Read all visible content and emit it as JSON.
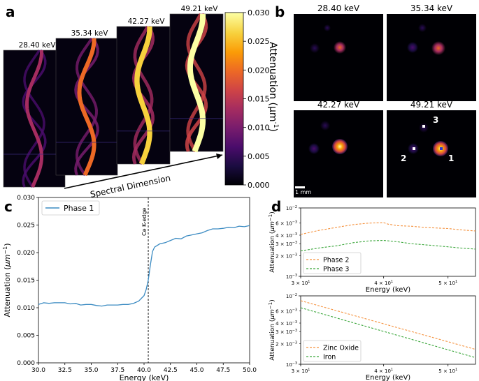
{
  "panels": {
    "a": "a",
    "b": "b",
    "c": "c",
    "d": "d"
  },
  "colors": {
    "phase1": "#3b8bc2",
    "orange": "#f5923e",
    "green": "#3aa63a",
    "cmap": [
      "#000004",
      "#1b0c41",
      "#4a0c6b",
      "#781c6d",
      "#a52c60",
      "#cf4446",
      "#ed6925",
      "#fb9b06",
      "#f7d13d",
      "#fcffa4"
    ]
  },
  "panel_a": {
    "energies": [
      "28.40 keV",
      "35.34 keV",
      "42.27 keV",
      "49.21 keV"
    ],
    "intensity": [
      0.25,
      0.5,
      0.85,
      1.0
    ],
    "spectral_label": "Spectral Dimension"
  },
  "colorbar": {
    "label_main": "Attenuation (μm",
    "label_sup": "-1",
    "label_close": ")",
    "ticks": [
      "0.000",
      "0.005",
      "0.010",
      "0.015",
      "0.020",
      "0.025",
      "0.030"
    ]
  },
  "panel_b": {
    "energies": [
      "28.40 keV",
      "35.34 keV",
      "42.27 keV",
      "49.21 keV"
    ],
    "markers": [
      "1",
      "2",
      "3"
    ],
    "scalebar": "1 mm"
  },
  "chart_data": [
    {
      "id": "c",
      "type": "line",
      "title": "",
      "xlabel": "Energy (keV)",
      "ylabel_main": "Attenuation (",
      "ylabel_unit": "μm",
      "ylabel_sup": "−1",
      "ylabel_close": ")",
      "xlim": [
        30.0,
        50.0
      ],
      "ylim": [
        0.0,
        0.03
      ],
      "xticks": [
        "30.0",
        "32.5",
        "35.0",
        "37.5",
        "40.0",
        "42.5",
        "45.0",
        "47.5",
        "50.0"
      ],
      "yticks": [
        "0.000",
        "0.005",
        "0.010",
        "0.015",
        "0.020",
        "0.025",
        "0.030"
      ],
      "legend": "Phase 1",
      "annotation": "Ce K-edge",
      "edge_x": 40.4,
      "series": [
        {
          "name": "Phase 1",
          "x": [
            30.0,
            30.5,
            31.0,
            31.5,
            32.0,
            32.5,
            33.0,
            33.5,
            34.0,
            34.5,
            35.0,
            35.5,
            36.0,
            36.5,
            37.0,
            37.5,
            38.0,
            38.5,
            39.0,
            39.5,
            40.0,
            40.2,
            40.4,
            40.6,
            40.8,
            41.0,
            41.5,
            42.0,
            42.5,
            43.0,
            43.5,
            44.0,
            44.5,
            45.0,
            45.5,
            46.0,
            46.5,
            47.0,
            47.5,
            48.0,
            48.5,
            49.0,
            49.5,
            50.0
          ],
          "y": [
            0.0106,
            0.0109,
            0.0108,
            0.0109,
            0.0109,
            0.0109,
            0.0107,
            0.0108,
            0.0105,
            0.0106,
            0.0106,
            0.0104,
            0.0103,
            0.0105,
            0.0105,
            0.0105,
            0.0106,
            0.0106,
            0.0108,
            0.0112,
            0.0122,
            0.0133,
            0.015,
            0.0178,
            0.0202,
            0.021,
            0.0216,
            0.0218,
            0.0222,
            0.0226,
            0.0225,
            0.023,
            0.0232,
            0.0234,
            0.0236,
            0.024,
            0.0243,
            0.0243,
            0.0244,
            0.0246,
            0.0245,
            0.0248,
            0.0247,
            0.0249
          ]
        }
      ]
    },
    {
      "id": "d1",
      "type": "line",
      "scale": "log-log",
      "xlabel": "Energy (keV)",
      "ylabel_main": "Attenuation (",
      "ylabel_unit": "μm",
      "ylabel_sup": "−1",
      "ylabel_close": ")",
      "xlim": [
        30,
        55
      ],
      "ylim": [
        0.001,
        0.01
      ],
      "yticks_major": [
        {
          "base": "10",
          "exp": "−2"
        },
        {
          "base": "10",
          "exp": "−3"
        }
      ],
      "yticks_minor": [
        {
          "base": "6 × 10",
          "exp": "−3"
        },
        {
          "base": "4 × 10",
          "exp": "−3"
        },
        {
          "base": "3 × 10",
          "exp": "−3"
        },
        {
          "base": "2 × 10",
          "exp": "−3"
        }
      ],
      "xticks": [
        {
          "base": "3 × 10",
          "exp": "1"
        },
        {
          "base": "4 × 10",
          "exp": "1"
        },
        {
          "base": "5 × 10",
          "exp": "1"
        }
      ],
      "legend": [
        "Phase 2",
        "Phase 3"
      ],
      "series": [
        {
          "name": "Phase 2",
          "x": [
            30,
            32,
            34,
            36,
            38,
            40,
            40.6,
            42,
            44,
            46,
            48,
            50,
            52,
            55
          ],
          "y": [
            0.0041,
            0.0047,
            0.0052,
            0.0057,
            0.006,
            0.0061,
            0.0058,
            0.0055,
            0.0054,
            0.0052,
            0.0051,
            0.005,
            0.0048,
            0.0046
          ]
        },
        {
          "name": "Phase 3",
          "x": [
            30,
            32,
            34,
            36,
            38,
            40,
            42,
            44,
            46,
            48,
            50,
            52,
            55
          ],
          "y": [
            0.00235,
            0.0026,
            0.0028,
            0.0031,
            0.0033,
            0.00335,
            0.0032,
            0.003,
            0.0029,
            0.0028,
            0.0027,
            0.0026,
            0.0025
          ]
        }
      ]
    },
    {
      "id": "d2",
      "type": "line",
      "scale": "log-log",
      "xlabel": "Energy (keV)",
      "ylabel_main": "Attenuation (",
      "ylabel_unit": "μm",
      "ylabel_sup": "−1",
      "ylabel_close": ")",
      "xlim": [
        30,
        55
      ],
      "ylim": [
        0.001,
        0.01
      ],
      "yticks_major": [
        {
          "base": "10",
          "exp": "−2"
        },
        {
          "base": "10",
          "exp": "−3"
        }
      ],
      "yticks_minor": [
        {
          "base": "6 × 10",
          "exp": "−3"
        },
        {
          "base": "4 × 10",
          "exp": "−3"
        },
        {
          "base": "3 × 10",
          "exp": "−3"
        },
        {
          "base": "2 × 10",
          "exp": "−3"
        }
      ],
      "xticks": [
        {
          "base": "3 × 10",
          "exp": "1"
        },
        {
          "base": "4 × 10",
          "exp": "1"
        },
        {
          "base": "5 × 10",
          "exp": "1"
        }
      ],
      "legend": [
        "Zinc Oxide",
        "Iron"
      ],
      "series": [
        {
          "name": "Zinc Oxide",
          "x": [
            30,
            55
          ],
          "y": [
            0.0085,
            0.00165
          ]
        },
        {
          "name": "Iron",
          "x": [
            30,
            55
          ],
          "y": [
            0.0067,
            0.00125
          ]
        }
      ]
    }
  ]
}
